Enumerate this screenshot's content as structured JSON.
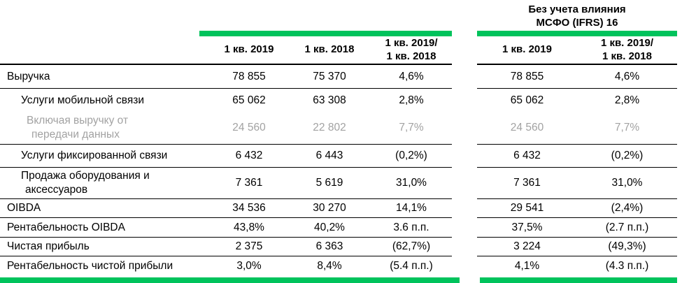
{
  "colors": {
    "accent_green": "#00C35C",
    "muted_text": "#A2A2A2",
    "text": "#000000"
  },
  "chart_data": {
    "type": "table",
    "title": "",
    "column_groups": [
      {
        "title": "",
        "columns": [
          "1 кв. 2019",
          "1 кв. 2018",
          "1 кв. 2019/\n1 кв. 2018"
        ]
      },
      {
        "title": "Без учета влияния\nМСФО (IFRS) 16",
        "columns": [
          "1 кв. 2019",
          "1 кв. 2019/\n1 кв. 2018"
        ]
      }
    ],
    "rows": [
      {
        "label": "Выручка",
        "q1_2019": "78 855",
        "q1_2018": "75 370",
        "change": "4,6%",
        "ifrs_q1_2019": "78 855",
        "ifrs_change": "4,6%"
      },
      {
        "label": "Услуги мобильной связи",
        "q1_2019": "65 062",
        "q1_2018": "63 308",
        "change": "2,8%",
        "ifrs_q1_2019": "65 062",
        "ifrs_change": "2,8%"
      },
      {
        "label": "Включая выручку от\nпередачи данных",
        "q1_2019": "24 560",
        "q1_2018": "22 802",
        "change": "7,7%",
        "ifrs_q1_2019": "24 560",
        "ifrs_change": "7,7%"
      },
      {
        "label": "Услуги фиксированной связи",
        "q1_2019": "6 432",
        "q1_2018": "6 443",
        "change": "(0,2%)",
        "ifrs_q1_2019": "6 432",
        "ifrs_change": "(0,2%)"
      },
      {
        "label": "Продажа оборудования и\nаксессуаров",
        "q1_2019": "7 361",
        "q1_2018": "5 619",
        "change": "31,0%",
        "ifrs_q1_2019": "7 361",
        "ifrs_change": "31,0%"
      },
      {
        "label": "OIBDA",
        "q1_2019": "34 536",
        "q1_2018": "30 270",
        "change": "14,1%",
        "ifrs_q1_2019": "29 541",
        "ifrs_change": "(2,4%)"
      },
      {
        "label": "Рентабельность OIBDA",
        "q1_2019": "43,8%",
        "q1_2018": "40,2%",
        "change": "3.6 п.п.",
        "ifrs_q1_2019": "37,5%",
        "ifrs_change": "(2.7 п.п.)"
      },
      {
        "label": "Чистая прибыль",
        "q1_2019": "2 375",
        "q1_2018": "6 363",
        "change": "(62,7%)",
        "ifrs_q1_2019": "3 224",
        "ifrs_change": "(49,3%)"
      },
      {
        "label": "Рентабельность чистой прибыли",
        "q1_2019": "3,0%",
        "q1_2018": "8,4%",
        "change": "(5.4 п.п.)",
        "ifrs_q1_2019": "4,1%",
        "ifrs_change": "(4.3 п.п.)"
      }
    ]
  }
}
